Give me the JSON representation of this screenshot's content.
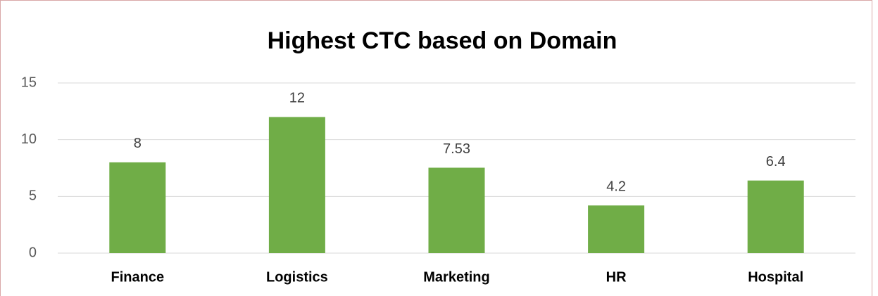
{
  "chart_data": {
    "type": "bar",
    "title": "Highest CTC based on Domain",
    "categories": [
      "Finance",
      "Logistics",
      "Marketing",
      "HR",
      "Hospital"
    ],
    "values": [
      8,
      12,
      7.53,
      4.2,
      6.4
    ],
    "color": "#70ad47",
    "ylim": [
      0,
      15
    ],
    "yticks": [
      0,
      5,
      10,
      15
    ],
    "grid": true
  }
}
